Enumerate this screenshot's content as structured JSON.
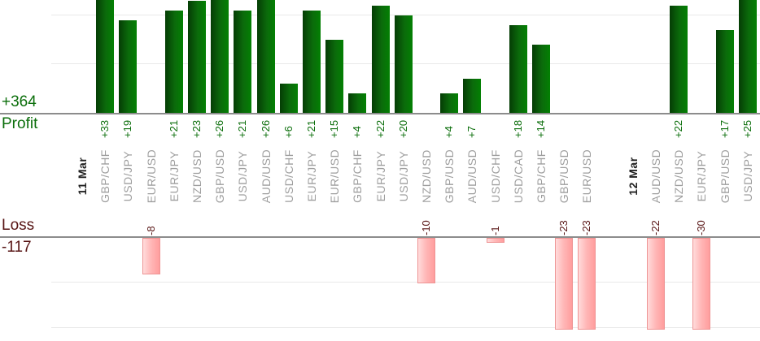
{
  "profit_summary": {
    "total": "+364",
    "label": "Profit"
  },
  "loss_summary": {
    "total": "-117",
    "label": "Loss"
  },
  "colors": {
    "profit_text": "#0b6e0b",
    "profit_bar_gradient": [
      "#053d05",
      "#0b6b0b",
      "#038003"
    ],
    "loss_text": "#571414",
    "loss_bar_gradient": [
      "#ffdcdc",
      "#ff9d9d"
    ],
    "loss_bar_border": "#ee9494",
    "pair_label": "#9e9e9e",
    "date_label": "#222222",
    "axis_line": "#8c8c8c",
    "gridline": "#e9e9e9"
  },
  "chart_data": {
    "type": "bar",
    "orientation": "vertical",
    "layout": "dual panel: profit bars above upper axis, loss bars below lower axis, rotated labels in middle band",
    "profit_label": "Profit",
    "profit_total": "+364",
    "loss_label": "Loss",
    "loss_total": "-117",
    "profit_gridline_values": [
      10,
      20
    ],
    "loss_gridline_values": [
      -10,
      -20
    ],
    "value_label_format": "signed integer, rotated 90°",
    "columns": [
      {
        "kind": "date",
        "label": "11 Mar"
      },
      {
        "kind": "trade",
        "label": "GBP/CHF",
        "value": 33
      },
      {
        "kind": "trade",
        "label": "USD/JPY",
        "value": 19
      },
      {
        "kind": "trade",
        "label": "EUR/USD",
        "value": -8
      },
      {
        "kind": "trade",
        "label": "EUR/JPY",
        "value": 21
      },
      {
        "kind": "trade",
        "label": "NZD/USD",
        "value": 23
      },
      {
        "kind": "trade",
        "label": "GBP/USD",
        "value": 26
      },
      {
        "kind": "trade",
        "label": "USD/JPY",
        "value": 21
      },
      {
        "kind": "trade",
        "label": "AUD/USD",
        "value": 26
      },
      {
        "kind": "trade",
        "label": "USD/CHF",
        "value": 6
      },
      {
        "kind": "trade",
        "label": "EUR/JPY",
        "value": 21
      },
      {
        "kind": "trade",
        "label": "EUR/USD",
        "value": 15
      },
      {
        "kind": "trade",
        "label": "GBP/CHF",
        "value": 4
      },
      {
        "kind": "trade",
        "label": "EUR/JPY",
        "value": 22
      },
      {
        "kind": "trade",
        "label": "USD/JPY",
        "value": 20
      },
      {
        "kind": "trade",
        "label": "NZD/USD",
        "value": -10
      },
      {
        "kind": "trade",
        "label": "GBP/USD",
        "value": 4
      },
      {
        "kind": "trade",
        "label": "AUD/USD",
        "value": 7
      },
      {
        "kind": "trade",
        "label": "USD/CHF",
        "value": -1
      },
      {
        "kind": "trade",
        "label": "USD/CAD",
        "value": 18
      },
      {
        "kind": "trade",
        "label": "GBP/CHF",
        "value": 14
      },
      {
        "kind": "trade",
        "label": "GBP/USD",
        "value": -23
      },
      {
        "kind": "trade",
        "label": "EUR/USD",
        "value": -23
      },
      {
        "kind": "gap"
      },
      {
        "kind": "date",
        "label": "12 Mar"
      },
      {
        "kind": "trade",
        "label": "AUD/USD",
        "value": -22
      },
      {
        "kind": "trade",
        "label": "NZD/USD",
        "value": 22
      },
      {
        "kind": "trade",
        "label": "EUR/JPY",
        "value": -30
      },
      {
        "kind": "trade",
        "label": "GBP/USD",
        "value": 17
      },
      {
        "kind": "trade",
        "label": "USD/JPY",
        "value": 25
      }
    ]
  }
}
